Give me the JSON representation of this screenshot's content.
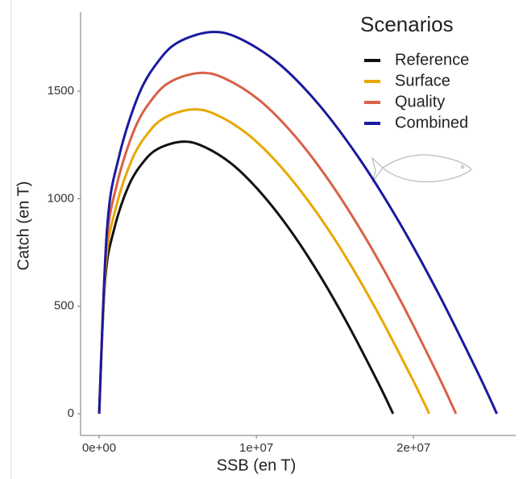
{
  "chart_data": {
    "type": "line",
    "x_label": "SSB (en T)",
    "y_label": "Catch (en T)",
    "legend_title": "Scenarios",
    "legend_position": "top-right",
    "xlim": [
      -1180000,
      26500000
    ],
    "ylim": [
      -101,
      1868
    ],
    "xticks": [
      {
        "value": 0,
        "label": "0e+00"
      },
      {
        "value": 10000000,
        "label": "1e+07"
      },
      {
        "value": 20000000,
        "label": "2e+07"
      }
    ],
    "yticks": [
      0,
      500,
      1000,
      1500
    ],
    "grid": false,
    "series": [
      {
        "name": "Reference",
        "color": "#111111",
        "x": [
          0,
          374000,
          935000,
          1870000,
          2805000,
          3740000,
          5236000,
          6545000,
          8415000,
          10285000,
          12155000,
          14025000,
          15895000,
          17765000,
          18700000
        ],
        "values": [
          0,
          615,
          853,
          1059,
          1170,
          1232,
          1265,
          1246,
          1163,
          1028,
          854,
          645,
          406,
          142,
          0
        ]
      },
      {
        "name": "Surface",
        "color": "#e8a800",
        "x": [
          0,
          420000,
          1050000,
          2100000,
          3150000,
          4200000,
          5880000,
          7350000,
          9450000,
          11550000,
          13650000,
          15750000,
          17850000,
          19950000,
          21000000
        ],
        "values": [
          0,
          688,
          954,
          1184,
          1309,
          1378,
          1415,
          1394,
          1300,
          1150,
          955,
          722,
          454,
          158,
          0
        ]
      },
      {
        "name": "Quality",
        "color": "#d9604a",
        "x": [
          0,
          454000,
          1135000,
          2270000,
          3405000,
          4540000,
          6356000,
          7945000,
          10215000,
          12485000,
          14755000,
          17025000,
          19295000,
          21565000,
          22700000
        ],
        "values": [
          0,
          770,
          1068,
          1327,
          1466,
          1544,
          1585,
          1561,
          1457,
          1289,
          1070,
          808,
          509,
          178,
          0
        ]
      },
      {
        "name": "Combined",
        "color": "#1a1a9e",
        "x": [
          0,
          506000,
          1265000,
          2530000,
          3795000,
          5060000,
          7084000,
          8855000,
          11385000,
          13915000,
          16445000,
          18975000,
          21505000,
          24035000,
          25300000
        ],
        "values": [
          0,
          863,
          1196,
          1486,
          1642,
          1729,
          1775,
          1748,
          1631,
          1443,
          1198,
          905,
          570,
          199,
          0
        ]
      }
    ]
  }
}
